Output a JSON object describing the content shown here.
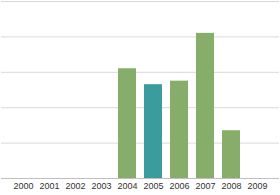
{
  "chart_data": {
    "type": "bar",
    "categories": [
      "2000",
      "2001",
      "2002",
      "2003",
      "2004",
      "2005",
      "2006",
      "2007",
      "2008",
      "2009"
    ],
    "values": [
      null,
      null,
      null,
      null,
      3.1,
      2.65,
      2.75,
      4.1,
      1.35,
      null
    ],
    "colors": [
      null,
      null,
      null,
      null,
      "#86ad69",
      "#3a9c9c",
      "#86ad69",
      "#86ad69",
      "#86ad69",
      null
    ],
    "ylim": [
      0,
      5
    ],
    "yticks": [
      0,
      1,
      2,
      3,
      4,
      5
    ],
    "grid": true,
    "tick_labels": "x"
  }
}
